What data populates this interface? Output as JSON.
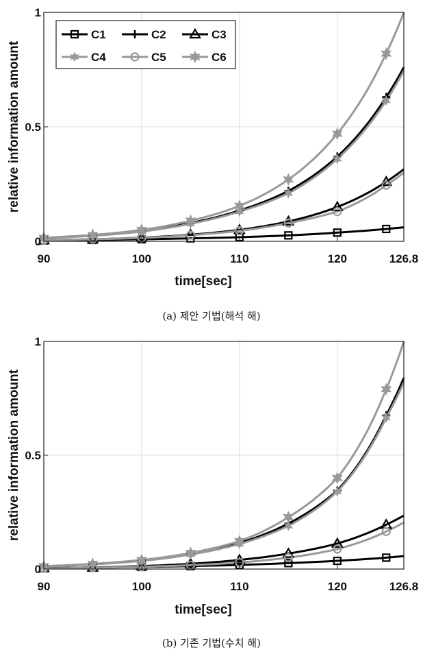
{
  "chart_data": [
    {
      "type": "line",
      "caption": "(a) 제안 기법(해석 해)",
      "xlabel": "time[sec]",
      "ylabel": "relative information amount",
      "xlim": [
        90,
        126.8
      ],
      "ylim": [
        0,
        1
      ],
      "x_ticks": [
        90,
        100,
        110,
        120,
        126.8
      ],
      "x_tick_labels": [
        "90",
        "100",
        "110",
        "120",
        "126.8"
      ],
      "y_ticks": [
        0,
        0.5,
        1
      ],
      "y_tick_labels": [
        "0",
        "0.5",
        "1"
      ],
      "grid": true,
      "legend": {
        "placement": "top-left",
        "columns": 3
      },
      "series": [
        {
          "name": "C1",
          "color": "#000000",
          "marker": "square",
          "x": [
            90,
            95,
            100,
            105,
            110,
            115,
            120,
            125,
            126.8
          ],
          "y": [
            0.004,
            0.006,
            0.009,
            0.013,
            0.018,
            0.026,
            0.038,
            0.054,
            0.061
          ]
        },
        {
          "name": "C2",
          "color": "#000000",
          "marker": "plus",
          "x": [
            90,
            95,
            100,
            105,
            110,
            115,
            120,
            125,
            126.8
          ],
          "y": [
            0.014,
            0.025,
            0.045,
            0.08,
            0.135,
            0.22,
            0.37,
            0.63,
            0.76
          ]
        },
        {
          "name": "C3",
          "color": "#000000",
          "marker": "triangle",
          "x": [
            90,
            95,
            100,
            105,
            110,
            115,
            120,
            125,
            126.8
          ],
          "y": [
            0.005,
            0.009,
            0.016,
            0.029,
            0.05,
            0.087,
            0.15,
            0.26,
            0.315
          ]
        },
        {
          "name": "C4",
          "color": "#999999",
          "marker": "diamond",
          "x": [
            90,
            95,
            100,
            105,
            110,
            115,
            120,
            125,
            126.8
          ],
          "y": [
            0.014,
            0.024,
            0.043,
            0.077,
            0.13,
            0.21,
            0.36,
            0.615,
            0.745
          ]
        },
        {
          "name": "C5",
          "color": "#999999",
          "marker": "circle",
          "x": [
            90,
            95,
            100,
            105,
            110,
            115,
            120,
            125,
            126.8
          ],
          "y": [
            0.005,
            0.009,
            0.015,
            0.027,
            0.046,
            0.08,
            0.13,
            0.245,
            0.3
          ]
        },
        {
          "name": "C6",
          "color": "#999999",
          "marker": "hexagram",
          "x": [
            90,
            95,
            100,
            105,
            110,
            115,
            120,
            125,
            126.8
          ],
          "y": [
            0.016,
            0.028,
            0.05,
            0.09,
            0.155,
            0.27,
            0.47,
            0.82,
            1.0
          ]
        }
      ]
    },
    {
      "type": "line",
      "caption": "(b) 기존 기법(수치 해)",
      "xlabel": "time[sec]",
      "ylabel": "relative information amount",
      "xlim": [
        90,
        126.8
      ],
      "ylim": [
        0,
        1
      ],
      "x_ticks": [
        90,
        100,
        110,
        120,
        126.8
      ],
      "x_tick_labels": [
        "90",
        "100",
        "110",
        "120",
        "126.8"
      ],
      "y_ticks": [
        0,
        0.5,
        1
      ],
      "y_tick_labels": [
        "0",
        "0.5",
        "1"
      ],
      "grid": true,
      "legend": null,
      "series": [
        {
          "name": "C1",
          "color": "#000000",
          "marker": "square",
          "x": [
            90,
            95,
            100,
            105,
            110,
            115,
            120,
            125,
            126.8
          ],
          "y": [
            0.004,
            0.006,
            0.009,
            0.013,
            0.018,
            0.026,
            0.036,
            0.05,
            0.057
          ]
        },
        {
          "name": "C2",
          "color": "#000000",
          "marker": "plus",
          "x": [
            90,
            95,
            100,
            105,
            110,
            115,
            120,
            125,
            126.8
          ],
          "y": [
            0.012,
            0.021,
            0.037,
            0.066,
            0.115,
            0.2,
            0.345,
            0.675,
            0.84
          ]
        },
        {
          "name": "C3",
          "color": "#000000",
          "marker": "triangle",
          "x": [
            90,
            95,
            100,
            105,
            110,
            115,
            120,
            125,
            126.8
          ],
          "y": [
            0.004,
            0.007,
            0.013,
            0.023,
            0.04,
            0.068,
            0.112,
            0.195,
            0.235
          ]
        },
        {
          "name": "C4",
          "color": "#999999",
          "marker": "diamond",
          "x": [
            90,
            95,
            100,
            105,
            110,
            115,
            120,
            125,
            126.8
          ],
          "y": [
            0.012,
            0.021,
            0.036,
            0.064,
            0.11,
            0.19,
            0.34,
            0.665,
            0.82
          ]
        },
        {
          "name": "C5",
          "color": "#999999",
          "marker": "circle",
          "x": [
            90,
            95,
            100,
            105,
            110,
            115,
            120,
            125,
            126.8
          ],
          "y": [
            0.003,
            0.006,
            0.01,
            0.017,
            0.029,
            0.05,
            0.088,
            0.165,
            0.205
          ]
        },
        {
          "name": "C6",
          "color": "#999999",
          "marker": "hexagram",
          "x": [
            90,
            95,
            100,
            105,
            110,
            115,
            120,
            125,
            126.8
          ],
          "y": [
            0.013,
            0.023,
            0.04,
            0.071,
            0.123,
            0.228,
            0.4,
            0.79,
            1.0
          ]
        }
      ]
    }
  ]
}
